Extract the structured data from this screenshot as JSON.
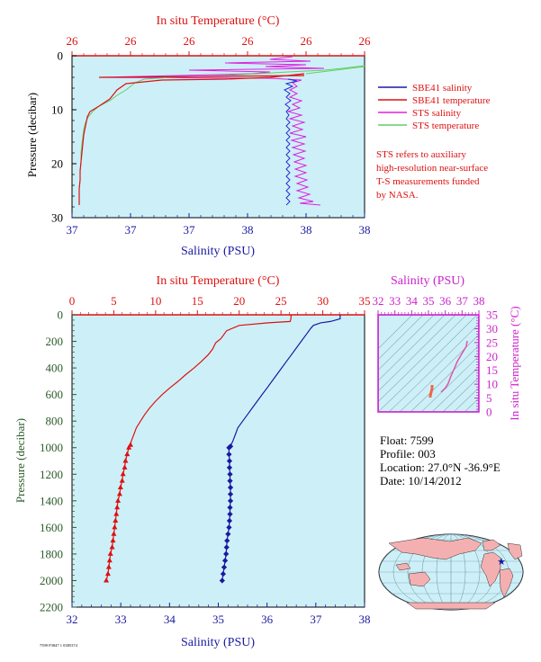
{
  "top_panel": {
    "top_axis_title": "In situ Temperature (°C)",
    "top_ticks": [
      "26",
      "26",
      "26",
      "26",
      "26",
      "26"
    ],
    "bottom_axis_title": "Salinity (PSU)",
    "bottom_ticks": [
      "37",
      "37",
      "37",
      "38",
      "38",
      "38"
    ],
    "left_axis_title": "Pressure (decibar)",
    "left_ticks": [
      "0",
      "10",
      "20",
      "30"
    ],
    "legend": [
      {
        "label": "SBE41 salinity",
        "color": "#1a1aa0"
      },
      {
        "label": "SBE41 temperature",
        "color": "#dd1111"
      },
      {
        "label": "STS salinity",
        "color": "#dd22dd"
      },
      {
        "label": "STS temperature",
        "color": "#66cc66"
      }
    ],
    "note": [
      "STS refers to auxiliary",
      "high-resolution near-surface",
      "T-S measurements funded",
      "by NASA."
    ]
  },
  "main_panel": {
    "top_axis_title": "In situ Temperature (°C)",
    "top_ticks": [
      "0",
      "5",
      "10",
      "15",
      "20",
      "25",
      "30",
      "35"
    ],
    "bottom_axis_title": "Salinity (PSU)",
    "bottom_ticks": [
      "32",
      "33",
      "34",
      "35",
      "36",
      "37",
      "38"
    ],
    "left_axis_title": "Pressure (decibar)",
    "left_ticks": [
      "0",
      "200",
      "400",
      "600",
      "800",
      "1000",
      "1200",
      "1400",
      "1600",
      "1800",
      "2000",
      "2200"
    ]
  },
  "ts_panel": {
    "top_axis_title": "Salinity (PSU)",
    "top_ticks": [
      "32",
      "33",
      "34",
      "35",
      "36",
      "37",
      "38"
    ],
    "right_axis_title": "In situ Temperature (°C)",
    "right_ticks": [
      "0",
      "5",
      "10",
      "15",
      "20",
      "25",
      "30",
      "35"
    ]
  },
  "float_info": {
    "float": "Float:  7599",
    "profile": "Profile:  003",
    "location": "Location:  27.0°N  -36.9°E",
    "date": "Date:  10/14/2012"
  },
  "footer_code": "7599 P3847 1 0385374",
  "chart_data": [
    {
      "type": "line",
      "name": "main-profile",
      "y_axis": "Pressure (decibar)",
      "ylim": [
        2200,
        0
      ],
      "temperature_xlim": [
        0,
        35
      ],
      "salinity_xlim": [
        32,
        38
      ],
      "series": [
        {
          "name": "",
          "variable": "temperature",
          "color": "#dd1111",
          "points": [
            [
              26.3,
              0
            ],
            [
              26.2,
              5
            ],
            [
              26.2,
              25
            ],
            [
              26.1,
              50
            ],
            [
              23.5,
              60
            ],
            [
              20,
              80
            ],
            [
              18.5,
              120
            ],
            [
              17.8,
              180
            ],
            [
              17.2,
              210
            ],
            [
              16.8,
              260
            ],
            [
              16.3,
              300
            ],
            [
              15.5,
              350
            ],
            [
              14.6,
              400
            ],
            [
              13.6,
              450
            ],
            [
              12.7,
              500
            ],
            [
              11.7,
              550
            ],
            [
              10.8,
              600
            ],
            [
              10,
              650
            ],
            [
              9.3,
              700
            ],
            [
              8.7,
              750
            ],
            [
              8.2,
              800
            ],
            [
              7.7,
              850
            ],
            [
              7.4,
              900
            ],
            [
              7.1,
              950
            ],
            [
              7.0,
              980
            ]
          ]
        },
        {
          "name": "",
          "variable": "temperature_bottle",
          "color": "#dd1111",
          "points": [
            [
              7.0,
              980
            ],
            [
              6.8,
              1000
            ],
            [
              6.6,
              1050
            ],
            [
              6.4,
              1100
            ],
            [
              6.3,
              1150
            ],
            [
              6.1,
              1200
            ],
            [
              6.0,
              1250
            ],
            [
              5.8,
              1300
            ],
            [
              5.7,
              1350
            ],
            [
              5.5,
              1400
            ],
            [
              5.4,
              1450
            ],
            [
              5.3,
              1500
            ],
            [
              5.2,
              1550
            ],
            [
              5.1,
              1600
            ],
            [
              5.0,
              1650
            ],
            [
              4.9,
              1700
            ],
            [
              4.8,
              1750
            ],
            [
              4.6,
              1800
            ],
            [
              4.5,
              1850
            ],
            [
              4.4,
              1900
            ],
            [
              4.3,
              1950
            ],
            [
              4.1,
              2000
            ]
          ]
        },
        {
          "name": "",
          "variable": "salinity",
          "color": "#1a1aa0",
          "points": [
            [
              37.5,
              0
            ],
            [
              37.5,
              10
            ],
            [
              37.5,
              30
            ],
            [
              37.3,
              50
            ],
            [
              37.1,
              60
            ],
            [
              36.95,
              80
            ],
            [
              36.9,
              100
            ],
            [
              36.8,
              150
            ],
            [
              36.7,
              200
            ],
            [
              36.6,
              250
            ],
            [
              36.5,
              300
            ],
            [
              36.4,
              350
            ],
            [
              36.3,
              400
            ],
            [
              36.2,
              450
            ],
            [
              36.1,
              500
            ],
            [
              36.0,
              550
            ],
            [
              35.9,
              600
            ],
            [
              35.8,
              650
            ],
            [
              35.7,
              700
            ],
            [
              35.6,
              750
            ],
            [
              35.5,
              800
            ],
            [
              35.4,
              850
            ],
            [
              35.35,
              900
            ],
            [
              35.3,
              950
            ],
            [
              35.25,
              990
            ]
          ]
        },
        {
          "name": "",
          "variable": "salinity_bottle",
          "color": "#1a1aa0",
          "points": [
            [
              35.25,
              990
            ],
            [
              35.22,
              1000
            ],
            [
              35.22,
              1050
            ],
            [
              35.23,
              1100
            ],
            [
              35.23,
              1150
            ],
            [
              35.24,
              1200
            ],
            [
              35.24,
              1250
            ],
            [
              35.25,
              1300
            ],
            [
              35.25,
              1350
            ],
            [
              35.25,
              1400
            ],
            [
              35.24,
              1450
            ],
            [
              35.24,
              1500
            ],
            [
              35.23,
              1550
            ],
            [
              35.22,
              1600
            ],
            [
              35.2,
              1650
            ],
            [
              35.18,
              1700
            ],
            [
              35.17,
              1750
            ],
            [
              35.16,
              1800
            ],
            [
              35.14,
              1850
            ],
            [
              35.12,
              1900
            ],
            [
              35.1,
              1950
            ],
            [
              35.08,
              2000
            ]
          ]
        }
      ]
    }
  ],
  "colors": {
    "panel_bg": "#cdf0f8",
    "temperature": "#dd1111",
    "salinity": "#1a1aa0",
    "ts_curve": "#dd55aa",
    "axis_magenta": "#cc22cc"
  }
}
